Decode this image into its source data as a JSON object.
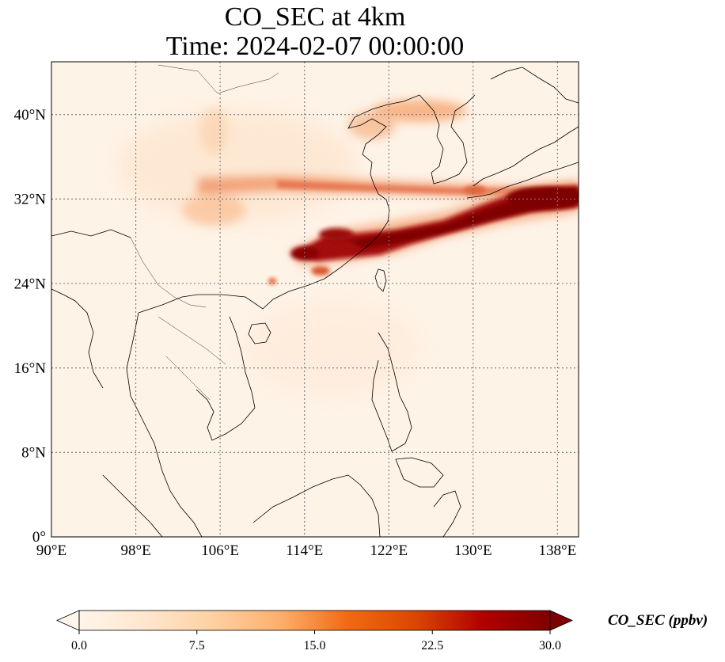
{
  "title": {
    "line1": "CO_SEC at 4km",
    "line2": "Time: 2024-02-07 00:00:00"
  },
  "map": {
    "lon_range": [
      90,
      140
    ],
    "lat_range": [
      0,
      45
    ],
    "lon_ticks": [
      {
        "value": 90,
        "label": "90°E"
      },
      {
        "value": 98,
        "label": "98°E"
      },
      {
        "value": 106,
        "label": "106°E"
      },
      {
        "value": 114,
        "label": "114°E"
      },
      {
        "value": 122,
        "label": "122°E"
      },
      {
        "value": 130,
        "label": "130°E"
      },
      {
        "value": 138,
        "label": "138°E"
      }
    ],
    "lat_ticks": [
      {
        "value": 0,
        "label": "0°"
      },
      {
        "value": 8,
        "label": "8°N"
      },
      {
        "value": 16,
        "label": "16°N"
      },
      {
        "value": 24,
        "label": "24°N"
      },
      {
        "value": 32,
        "label": "32°N"
      },
      {
        "value": 40,
        "label": "40°N"
      }
    ],
    "gridlines": true
  },
  "colorbar": {
    "label": "CO_SEC (ppbv)",
    "min": 0.0,
    "max": 30.0,
    "extend": "both",
    "ticks": [
      {
        "value": 0.0,
        "label": "0.0"
      },
      {
        "value": 7.5,
        "label": "7.5"
      },
      {
        "value": 15.0,
        "label": "15.0"
      },
      {
        "value": 22.5,
        "label": "22.5"
      },
      {
        "value": 30.0,
        "label": "30.0"
      }
    ],
    "colors": [
      "#fff5eb",
      "#fee6ce",
      "#fdd0a2",
      "#fdae6b",
      "#f16913",
      "#d94801",
      "#b10000",
      "#7f0000"
    ]
  }
}
